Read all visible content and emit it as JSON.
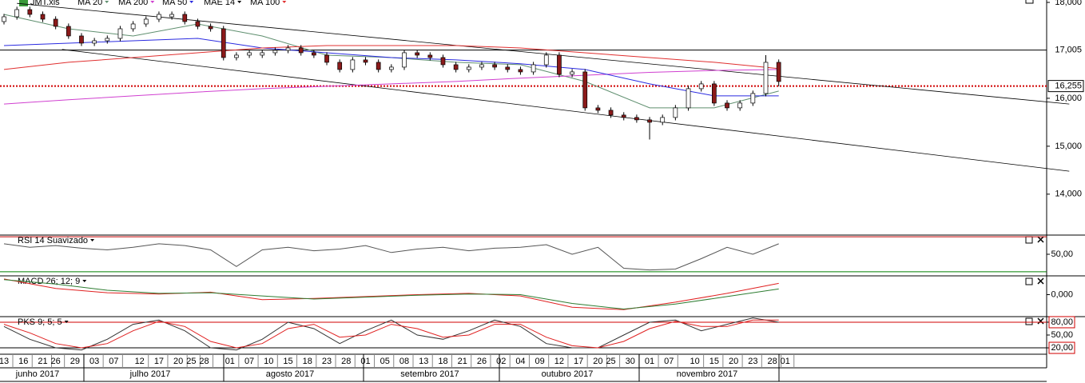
{
  "chart_data": [
    {
      "type": "candlestick",
      "file": "JMT.xls",
      "x": [
        0,
        2,
        4,
        6,
        8,
        10,
        12,
        14,
        16,
        18,
        20,
        22,
        24,
        26,
        28,
        30,
        32,
        34,
        36,
        38,
        40,
        42,
        44,
        46,
        48,
        50,
        52,
        54,
        56,
        58,
        60,
        62,
        64,
        66,
        68,
        70,
        72,
        74,
        76,
        78,
        80,
        82,
        84,
        86,
        88,
        90,
        92,
        94,
        96,
        98,
        100,
        102,
        104,
        106,
        108,
        110,
        112,
        114,
        116,
        118,
        120
      ],
      "open": [
        17600,
        17700,
        17850,
        17750,
        17650,
        17500,
        17300,
        17150,
        17200,
        17250,
        17450,
        17550,
        17650,
        17700,
        17750,
        17600,
        17500,
        17450,
        16850,
        16900,
        16900,
        16950,
        17000,
        17050,
        16950,
        16900,
        16750,
        16600,
        16800,
        16750,
        16600,
        16650,
        16950,
        16900,
        16850,
        16700,
        16600,
        16650,
        16700,
        16650,
        16600,
        16550,
        16700,
        16900,
        16500,
        16550,
        15800,
        15750,
        15650,
        15600,
        15550,
        15500,
        15600,
        15800,
        16200,
        16300,
        15900,
        15800,
        15900,
        16100,
        16750
      ],
      "high": [
        17760,
        17910,
        17910,
        17810,
        17710,
        17560,
        17360,
        17260,
        17310,
        17510,
        17610,
        17710,
        17810,
        17810,
        17810,
        17660,
        17560,
        17510,
        16960,
        17010,
        17010,
        17060,
        17110,
        17110,
        17010,
        16960,
        16810,
        16860,
        16860,
        16810,
        16710,
        17010,
        17010,
        16960,
        16910,
        16760,
        16710,
        16760,
        16760,
        16710,
        16660,
        16760,
        16960,
        16960,
        16610,
        16610,
        15860,
        15810,
        15710,
        15660,
        15610,
        15660,
        15860,
        16260,
        16360,
        16360,
        15960,
        15960,
        16160,
        16900,
        16810
      ],
      "low": [
        17540,
        17640,
        17690,
        17590,
        17440,
        17240,
        17090,
        17090,
        17140,
        17190,
        17390,
        17490,
        17590,
        17640,
        17540,
        17440,
        17390,
        16790,
        16790,
        16840,
        16840,
        16890,
        16940,
        16890,
        16840,
        16690,
        16540,
        16540,
        16690,
        16540,
        16540,
        16590,
        16840,
        16790,
        16640,
        16540,
        16540,
        16590,
        16590,
        16540,
        16490,
        16490,
        16640,
        16440,
        16440,
        15740,
        15690,
        15590,
        15540,
        15490,
        15140,
        15440,
        15540,
        15740,
        16140,
        15840,
        15740,
        15740,
        15840,
        16040,
        16250
      ],
      "close": [
        17700,
        17850,
        17750,
        17650,
        17500,
        17300,
        17150,
        17200,
        17250,
        17450,
        17550,
        17650,
        17750,
        17750,
        17600,
        17500,
        17450,
        16850,
        16900,
        16950,
        16950,
        17000,
        17050,
        16950,
        16900,
        16750,
        16600,
        16800,
        16750,
        16600,
        16650,
        16950,
        16900,
        16850,
        16700,
        16600,
        16650,
        16700,
        16650,
        16600,
        16550,
        16700,
        16900,
        16500,
        16550,
        15800,
        15750,
        15650,
        15600,
        15550,
        15500,
        15600,
        15800,
        16200,
        16300,
        15900,
        15800,
        15900,
        16100,
        16750,
        16350
      ],
      "up_color": "#ffffff",
      "down_color": "#8b1a1a",
      "series": [
        {
          "name": "MA 20",
          "color": "#5f8f6f",
          "x": [
            0,
            10,
            20,
            30,
            40,
            50,
            60,
            70,
            80,
            90,
            100,
            110,
            120
          ],
          "values": [
            17750,
            17450,
            17300,
            17550,
            17300,
            16900,
            16850,
            16750,
            16700,
            16350,
            15800,
            15800,
            16150
          ]
        },
        {
          "name": "MA 200",
          "color": "#d040d0",
          "x": [
            0,
            10,
            20,
            30,
            40,
            50,
            60,
            70,
            80,
            90,
            100,
            110,
            120
          ],
          "values": [
            15880,
            15970,
            16050,
            16130,
            16200,
            16250,
            16300,
            16350,
            16420,
            16480,
            16540,
            16580,
            16600
          ]
        },
        {
          "name": "MA 50",
          "color": "#2a2ae0",
          "x": [
            0,
            10,
            20,
            30,
            40,
            50,
            60,
            70,
            80,
            90,
            100,
            110,
            120
          ],
          "values": [
            17100,
            17150,
            17200,
            17250,
            17050,
            16950,
            16850,
            16800,
            16720,
            16600,
            16300,
            16050,
            16050
          ]
        },
        {
          "name": "MA 100",
          "color": "#e03030",
          "x": [
            0,
            10,
            20,
            30,
            40,
            50,
            60,
            70,
            80,
            90,
            100,
            110,
            120
          ],
          "values": [
            16600,
            16750,
            16850,
            16950,
            17050,
            17100,
            17100,
            17100,
            17050,
            16950,
            16850,
            16750,
            16620
          ]
        }
      ],
      "envelope": {
        "name": "MAE 14",
        "color": "#000000"
      },
      "channel": [
        {
          "color": "#000000",
          "x": [
            2,
            165
          ],
          "values": [
            17980,
            15880
          ]
        },
        {
          "color": "#000000",
          "x": [
            9,
            165
          ],
          "values": [
            17020,
            14480
          ]
        }
      ],
      "levels": [
        {
          "value": 17005,
          "label": "17,005",
          "color": "#000000",
          "style": "solid",
          "label_color": "#d00000"
        },
        {
          "value": 16255,
          "label": "16,255",
          "color": "#d00000",
          "style": "dotted",
          "label_color": "#000000"
        }
      ],
      "xlim": [
        -0.62,
        161.5
      ],
      "ylim": [
        13180,
        18050
      ],
      "yticks": [
        {
          "value": 18000,
          "label": "18,000"
        },
        {
          "value": 16000,
          "label": "16,000"
        },
        {
          "value": 15000,
          "label": "15,000"
        },
        {
          "value": 14000,
          "label": "14,000"
        }
      ],
      "xticks": [
        {
          "value": 0,
          "label": "13"
        },
        {
          "value": 3,
          "label": "16"
        },
        {
          "value": 6,
          "label": "21"
        },
        {
          "value": 8,
          "label": "26"
        },
        {
          "value": 11,
          "label": "29"
        },
        {
          "value": 14,
          "label": "03"
        },
        {
          "value": 17,
          "label": "07"
        },
        {
          "value": 21,
          "label": "12"
        },
        {
          "value": 24,
          "label": "17"
        },
        {
          "value": 27,
          "label": "20"
        },
        {
          "value": 29,
          "label": "25"
        },
        {
          "value": 31,
          "label": "28"
        },
        {
          "value": 35,
          "label": "01"
        },
        {
          "value": 38,
          "label": "07"
        },
        {
          "value": 41,
          "label": "10"
        },
        {
          "value": 44,
          "label": "15"
        },
        {
          "value": 47,
          "label": "18"
        },
        {
          "value": 50,
          "label": "23"
        },
        {
          "value": 53,
          "label": "28"
        },
        {
          "value": 56,
          "label": "01"
        },
        {
          "value": 59,
          "label": "05"
        },
        {
          "value": 62,
          "label": "08"
        },
        {
          "value": 65,
          "label": "13"
        },
        {
          "value": 68,
          "label": "18"
        },
        {
          "value": 71,
          "label": "21"
        },
        {
          "value": 74,
          "label": "26"
        },
        {
          "value": 77,
          "label": "02"
        },
        {
          "value": 80,
          "label": "04"
        },
        {
          "value": 83,
          "label": "09"
        },
        {
          "value": 86,
          "label": "12"
        },
        {
          "value": 89,
          "label": "17"
        },
        {
          "value": 92,
          "label": "20"
        },
        {
          "value": 94,
          "label": "25"
        },
        {
          "value": 97,
          "label": "30"
        },
        {
          "value": 100,
          "label": "01"
        },
        {
          "value": 103,
          "label": "07"
        },
        {
          "value": 107,
          "label": "10"
        },
        {
          "value": 110,
          "label": "15"
        },
        {
          "value": 113,
          "label": "20"
        },
        {
          "value": 116,
          "label": "23"
        },
        {
          "value": 119,
          "label": "28"
        },
        {
          "value": 121,
          "label": "01"
        }
      ],
      "months": [
        "junho 2017",
        "julho 2017",
        "agosto 2017",
        "setembro 2017",
        "outubro 2017",
        "novembro 2017"
      ]
    },
    {
      "type": "line",
      "title": "RSI 14 Suavizado",
      "x": [
        0,
        4,
        8,
        12,
        16,
        20,
        24,
        28,
        32,
        36,
        40,
        44,
        48,
        52,
        56,
        60,
        64,
        68,
        72,
        76,
        80,
        84,
        88,
        92,
        96,
        100,
        104,
        108,
        112,
        116,
        120
      ],
      "series": [
        {
          "color": "#555555",
          "values": [
            62,
            58,
            60,
            57,
            55,
            58,
            62,
            60,
            55,
            36,
            55,
            58,
            54,
            56,
            60,
            52,
            56,
            58,
            54,
            57,
            58,
            61,
            50,
            58,
            34,
            32,
            33,
            45,
            58,
            50,
            62
          ]
        }
      ],
      "levels": [
        {
          "value": 70,
          "color": "#c00000"
        },
        {
          "value": 30,
          "color": "#008000"
        }
      ],
      "ylim": [
        28,
        72
      ],
      "yticks": [
        {
          "value": 50,
          "label": "50,00"
        }
      ]
    },
    {
      "type": "line",
      "title": "MACD 26; 12; 9",
      "x": [
        0,
        8,
        16,
        24,
        32,
        40,
        48,
        56,
        64,
        72,
        80,
        88,
        96,
        104,
        112,
        120
      ],
      "series": [
        {
          "color": "#e02020",
          "values": [
            250,
            100,
            30,
            10,
            40,
            -80,
            -60,
            -30,
            0,
            20,
            -20,
            -200,
            -240,
            -120,
            20,
            180
          ]
        },
        {
          "color": "#2e7d32",
          "values": [
            240,
            170,
            70,
            20,
            30,
            -20,
            -70,
            -40,
            -10,
            10,
            0,
            -140,
            -230,
            -150,
            -30,
            90
          ]
        }
      ],
      "levels": [],
      "ylim": [
        -300,
        300
      ],
      "yticks": [
        {
          "value": 0,
          "label": "0,000"
        }
      ]
    },
    {
      "type": "line",
      "title": "PKS 9; 5; 5",
      "x": [
        0,
        4,
        8,
        12,
        16,
        20,
        24,
        28,
        32,
        36,
        40,
        44,
        48,
        52,
        56,
        60,
        64,
        68,
        72,
        76,
        80,
        84,
        88,
        92,
        96,
        100,
        104,
        108,
        112,
        116,
        120
      ],
      "series": [
        {
          "color": "#333333",
          "values": [
            70,
            40,
            20,
            15,
            40,
            75,
            85,
            60,
            20,
            15,
            40,
            80,
            65,
            30,
            60,
            85,
            50,
            40,
            60,
            85,
            70,
            30,
            20,
            20,
            50,
            80,
            85,
            60,
            75,
            90,
            80
          ]
        },
        {
          "color": "#e02020",
          "values": [
            75,
            55,
            30,
            20,
            30,
            60,
            82,
            70,
            35,
            20,
            30,
            65,
            75,
            45,
            50,
            75,
            65,
            45,
            50,
            75,
            75,
            45,
            25,
            20,
            35,
            65,
            82,
            70,
            70,
            85,
            85
          ]
        }
      ],
      "levels": [
        {
          "value": 80,
          "color": "#d00000"
        },
        {
          "value": 20,
          "color": "#000000"
        }
      ],
      "ylim": [
        7,
        93
      ],
      "yticks": [
        {
          "value": 80,
          "label": "80,00"
        },
        {
          "value": 50,
          "label": "50,00"
        },
        {
          "value": 20,
          "label": "20,00"
        }
      ]
    }
  ]
}
